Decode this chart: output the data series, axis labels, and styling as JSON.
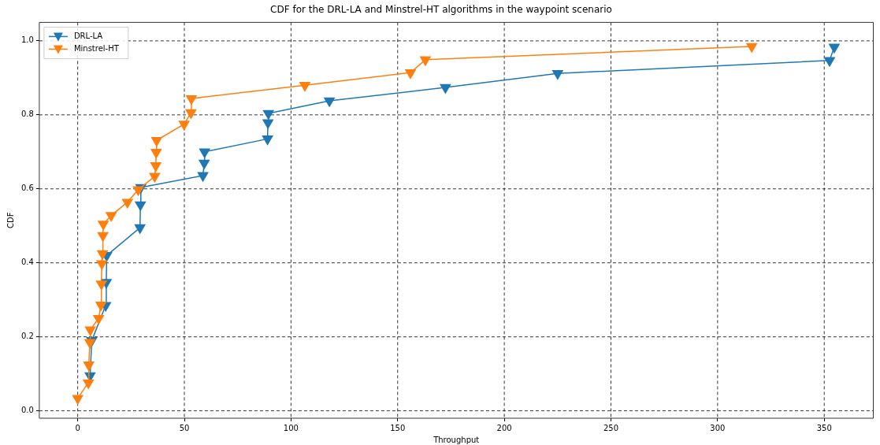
{
  "chart_data": {
    "type": "line",
    "title": "CDF for the DRL-LA and Minstrel-HT algorithms in the waypoint scenario",
    "xlabel": "Throughput",
    "ylabel": "CDF",
    "series": [
      {
        "name": "DRL-LA",
        "color": "#1f77b4",
        "x": [
          5.8,
          6.6,
          13.1,
          13.4,
          13.6,
          29.2,
          29.4,
          29.6,
          58.7,
          59.3,
          59.5,
          89,
          89.2,
          89.4,
          118,
          172.4,
          225,
          352.5,
          354.7
        ],
        "values": [
          0.095,
          0.19,
          0.285,
          0.347,
          0.42,
          0.495,
          0.557,
          0.604,
          0.636,
          0.67,
          0.7,
          0.735,
          0.779,
          0.804,
          0.838,
          0.874,
          0.912,
          0.947,
          0.983
        ]
      },
      {
        "name": "Minstrel-HT",
        "color": "#ff7f0e",
        "x": [
          0,
          5,
          5.2,
          5.7,
          5.9,
          9.8,
          10.9,
          11.1,
          11.3,
          11.6,
          11.8,
          12,
          15.7,
          23.3,
          28.4,
          36.1,
          36.6,
          36.8,
          37,
          49.9,
          53.1,
          53.3,
          106.5,
          156,
          163,
          316
        ],
        "values": [
          0.034,
          0.076,
          0.124,
          0.185,
          0.219,
          0.25,
          0.286,
          0.343,
          0.398,
          0.425,
          0.474,
          0.505,
          0.528,
          0.564,
          0.598,
          0.634,
          0.663,
          0.699,
          0.731,
          0.775,
          0.806,
          0.844,
          0.88,
          0.914,
          0.949,
          0.985
        ]
      }
    ],
    "xlim": [
      -18,
      373
    ],
    "xticks": [
      0,
      50,
      100,
      150,
      200,
      250,
      300,
      350
    ],
    "ylim": [
      -0.02,
      1.05
    ],
    "yticks": [
      {
        "value": 0,
        "label": "0.0"
      },
      {
        "value": 0.2,
        "label": "0.2"
      },
      {
        "value": 0.4,
        "label": "0.4"
      },
      {
        "value": 0.6,
        "label": "0.6"
      },
      {
        "value": 0.8,
        "label": "0.8"
      },
      {
        "value": 1,
        "label": "1.0"
      }
    ],
    "grid": true,
    "legend": "top left",
    "marker": "triangle",
    "line_style": "solid"
  }
}
